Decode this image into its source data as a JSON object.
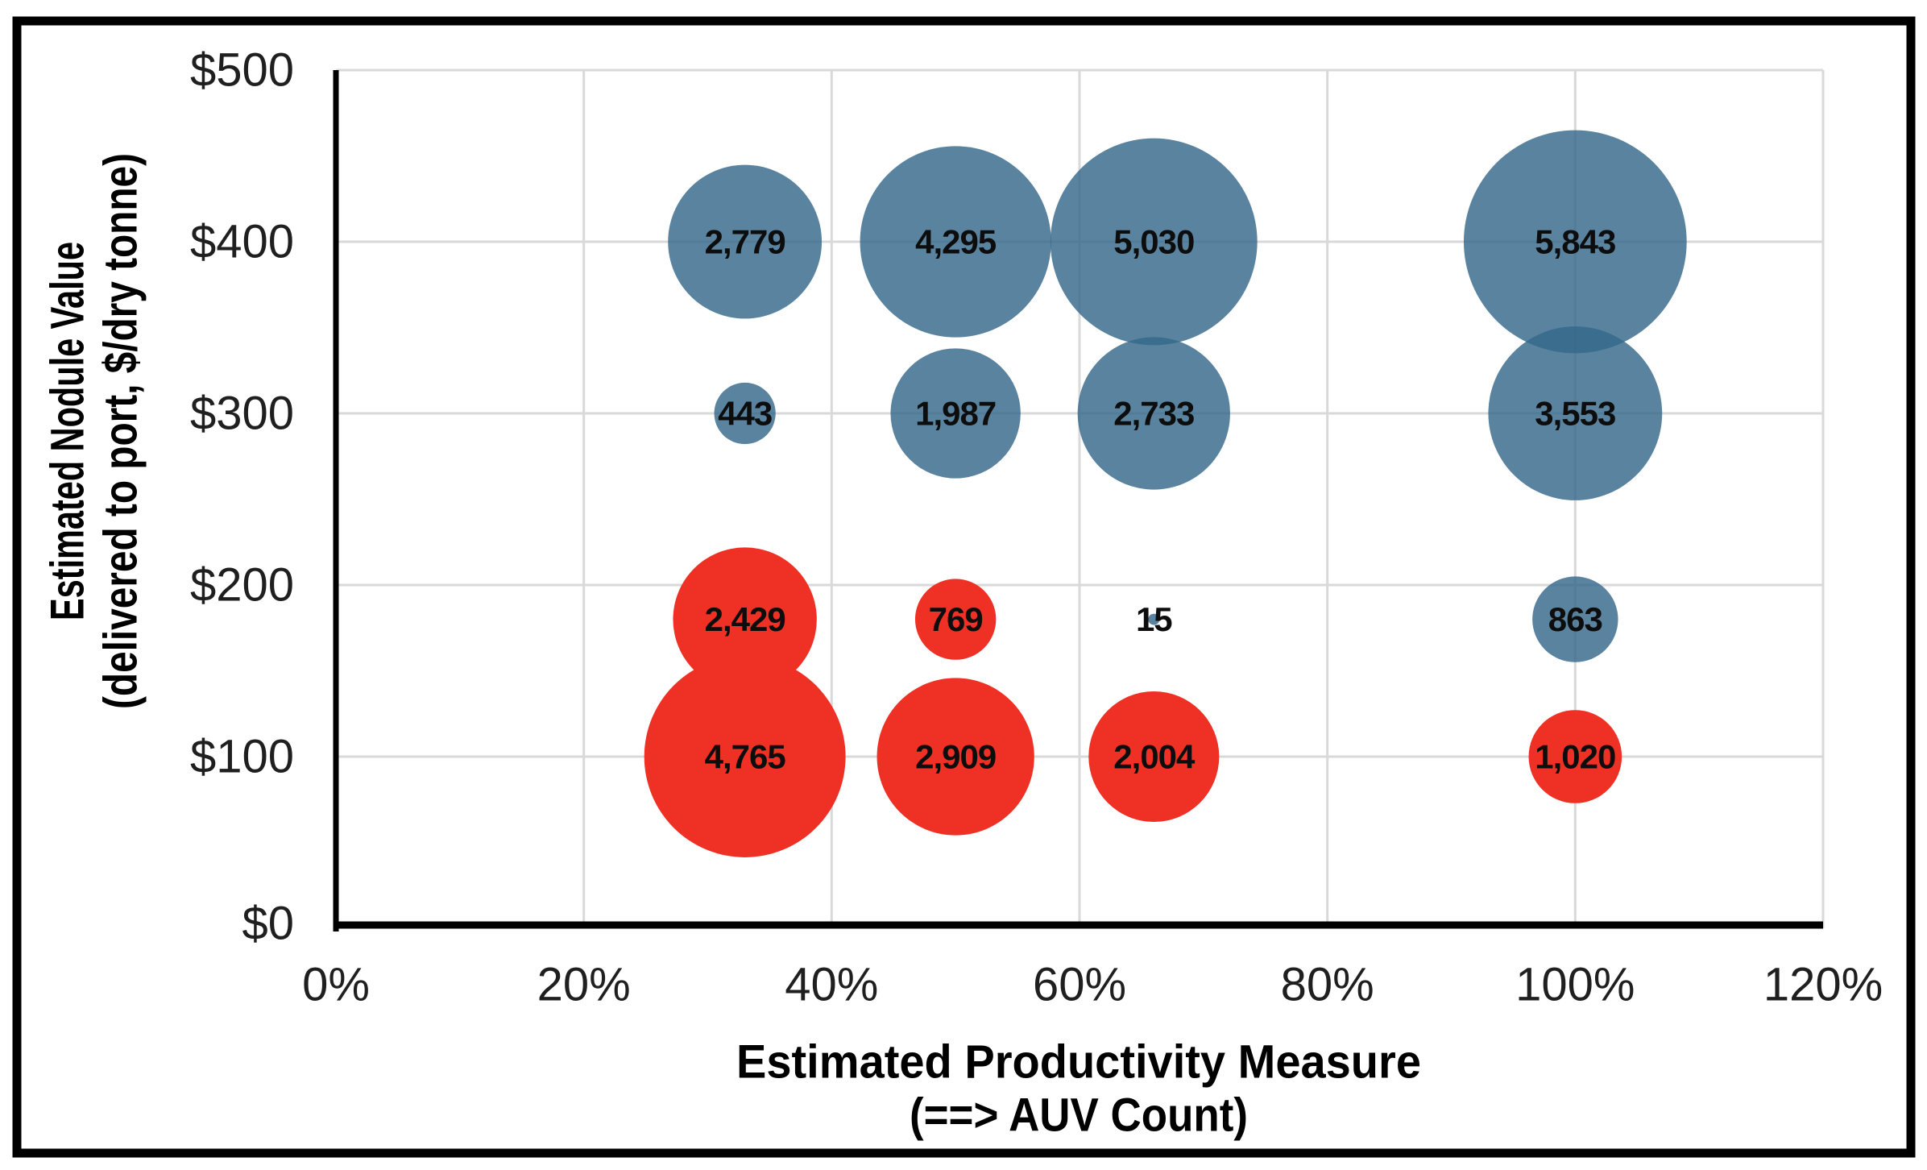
{
  "chart_data": {
    "type": "bubble",
    "title": "",
    "xlabel_line1": "Estimated Productivity Measure",
    "xlabel_line2": "(==> AUV Count)",
    "ylabel_line1": "Estimated Nodule Value",
    "ylabel_line2": "(delivered to port, $/dry tonne)",
    "xlim": [
      0,
      120
    ],
    "ylim": [
      0,
      500
    ],
    "x_tick_values": [
      0,
      20,
      40,
      60,
      80,
      100,
      120
    ],
    "x_tick_labels": [
      "0%",
      "20%",
      "40%",
      "60%",
      "80%",
      "100%",
      "120%"
    ],
    "y_tick_values": [
      0,
      100,
      200,
      300,
      400,
      500
    ],
    "y_tick_labels": [
      "$0",
      "$100",
      "$200",
      "$300",
      "$400",
      "$500"
    ],
    "grid": true,
    "legend": "none",
    "colors": {
      "blue_series": "#35688a",
      "blue_series_rendered": "#5d86a0",
      "red_series": "#ee3124",
      "gridline": "#d9d9d9",
      "axis_line": "#000000",
      "frame_border": "#000000",
      "label_text": "#0d0d0d"
    },
    "bubble_size_rule": "radius_px = 1.81 * sqrt(value)",
    "series": [
      {
        "name": "blue",
        "color": "#35688a",
        "opacity": 0.82,
        "points": [
          {
            "x": 33,
            "y": 400,
            "value": 2779,
            "label": "2,779"
          },
          {
            "x": 50,
            "y": 400,
            "value": 4295,
            "label": "4,295"
          },
          {
            "x": 66,
            "y": 400,
            "value": 5030,
            "label": "5,030"
          },
          {
            "x": 100,
            "y": 400,
            "value": 5843,
            "label": "5,843"
          },
          {
            "x": 33,
            "y": 300,
            "value": 443,
            "label": "443"
          },
          {
            "x": 50,
            "y": 300,
            "value": 1987,
            "label": "1,987"
          },
          {
            "x": 66,
            "y": 300,
            "value": 2733,
            "label": "2,733"
          },
          {
            "x": 100,
            "y": 300,
            "value": 3553,
            "label": "3,553"
          },
          {
            "x": 66,
            "y": 180,
            "value": 15,
            "label": "15"
          },
          {
            "x": 100,
            "y": 180,
            "value": 863,
            "label": "863"
          }
        ]
      },
      {
        "name": "red",
        "color": "#ee3124",
        "opacity": 1,
        "points": [
          {
            "x": 33,
            "y": 180,
            "value": 2429,
            "label": "2,429"
          },
          {
            "x": 50,
            "y": 180,
            "value": 769,
            "label": "769"
          },
          {
            "x": 33,
            "y": 100,
            "value": 4765,
            "label": "4,765"
          },
          {
            "x": 50,
            "y": 100,
            "value": 2909,
            "label": "2,909"
          },
          {
            "x": 66,
            "y": 100,
            "value": 2004,
            "label": "2,004"
          },
          {
            "x": 100,
            "y": 100,
            "value": 1020,
            "label": "1,020"
          }
        ]
      }
    ]
  }
}
